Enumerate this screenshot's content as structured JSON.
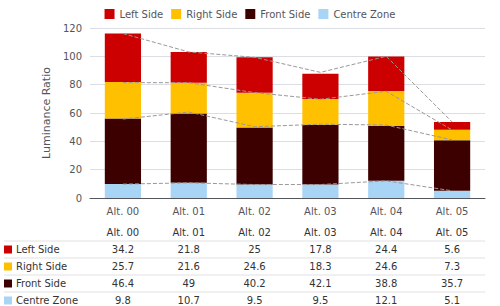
{
  "chart_data": {
    "type": "bar",
    "stacked": true,
    "ylabel": "Luminance Ratio",
    "categories": [
      "Alt. 00",
      "Alt. 01",
      "Alt. 02",
      "Alt. 03",
      "Alt. 04",
      "Alt. 05"
    ],
    "series": [
      {
        "name": "Centre Zone",
        "color": "#a8d4f5",
        "values": [
          9.8,
          10.7,
          9.5,
          9.5,
          12.1,
          5.1
        ]
      },
      {
        "name": "Front Side",
        "color": "#3d0000",
        "values": [
          46.4,
          49.0,
          40.2,
          42.1,
          38.8,
          35.7
        ]
      },
      {
        "name": "Right Side",
        "color": "#ffc000",
        "values": [
          25.7,
          21.6,
          24.6,
          18.3,
          24.6,
          7.3
        ]
      },
      {
        "name": "Left Side",
        "color": "#cc0000",
        "values": [
          34.2,
          21.8,
          25.0,
          17.8,
          24.4,
          5.6
        ]
      },
      {
        "type": "line",
        "color": "#999999",
        "line_style": "dashed",
        "values": [
          116.1,
          103.1,
          99.3,
          88.7,
          100.0,
          53.7
        ]
      },
      {
        "type": "line",
        "color": "#999999",
        "line_style": "dashed",
        "values": [
          81.4,
          81.4,
          74.4,
          69.7,
          75.3,
          48.0
        ]
      },
      {
        "type": "line",
        "color": "#999999",
        "line_style": "dashed",
        "values": [
          55.7,
          60.7,
          50.3,
          52.1,
          51.5,
          41.0
        ]
      },
      {
        "type": "line",
        "color": "#999999",
        "line_style": "dashed",
        "values": [
          9.8,
          10.7,
          9.5,
          9.5,
          12.1,
          5.1
        ]
      }
    ],
    "ylim": [
      0,
      120
    ],
    "yticks": [
      0,
      20,
      40,
      60,
      80,
      100,
      120
    ],
    "grid": true,
    "legend": "top",
    "table": [
      {
        "name": "Left Side",
        "values": [
          34.2,
          21.8,
          25,
          17.8,
          24.4,
          5.6
        ]
      },
      {
        "name": "Right Side",
        "values": [
          25.7,
          21.6,
          24.6,
          18.3,
          24.6,
          7.3
        ]
      },
      {
        "name": "Front Side",
        "values": [
          46.4,
          49,
          40.2,
          42.1,
          38.8,
          35.7
        ]
      },
      {
        "name": "Centre Zone",
        "values": [
          9.8,
          10.7,
          9.5,
          9.5,
          12.1,
          5.1
        ]
      }
    ]
  }
}
